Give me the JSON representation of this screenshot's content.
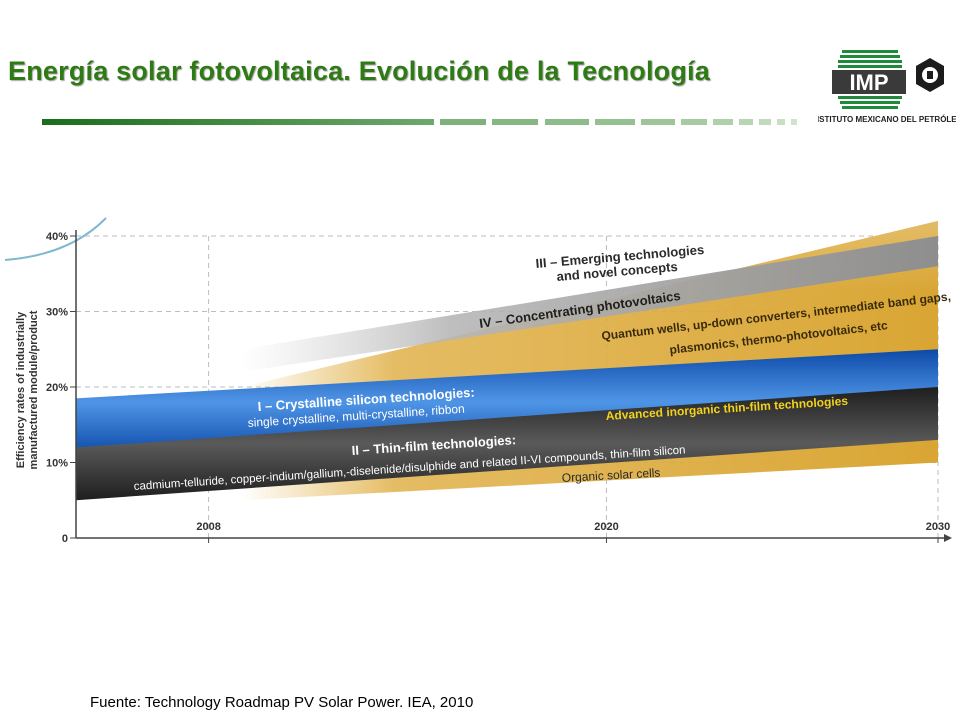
{
  "slide": {
    "title": "Energía solar fotovoltaica. Evolución de la Tecnología",
    "source": "Fuente: Technology Roadmap PV Solar Power. IEA, 2010"
  },
  "logo": {
    "letters": "IMP",
    "name": "INSTITUTO MEXICANO DEL PETRÓLEO"
  },
  "colors": {
    "title_green": "#2e7a14",
    "crystalline_blue": "#1f63c4",
    "thinfilm_dark": "#2b2b2b",
    "emerging_gold": "#d9a634",
    "concentrating_gray": "#9a9a9a"
  },
  "chart_data": {
    "type": "area",
    "ylabel": "Efficiency rates of industrially manufactured module/product",
    "x_ticks": [
      "2008",
      "2020",
      "2030"
    ],
    "y_ticks": [
      "0",
      "10%",
      "20%",
      "30%",
      "40%"
    ],
    "xlim": [
      2004,
      2030
    ],
    "ylim": [
      0,
      40
    ],
    "grid": true,
    "series": [
      {
        "name": "I – Crystalline silicon technologies:",
        "detail": "single crystalline, multi-crystalline, ribbon",
        "x": [
          2004,
          2030
        ],
        "low": [
          11,
          19
        ],
        "high": [
          18.5,
          25
        ]
      },
      {
        "name": "II – Thin-film technologies:",
        "detail": "cadmium-telluride, copper-indium/gallium,-diselenide/disulphide and related II-VI compounds, thin-film silicon",
        "x": [
          2004,
          2030
        ],
        "low": [
          5,
          13
        ],
        "high": [
          12,
          20
        ]
      },
      {
        "name": "III – Emerging technologies and novel concepts",
        "detail": "Quantum wells, up-down converters, intermediate band gaps, plasmonics, thermo-photovoltaics, etc",
        "x": [
          2009,
          2030
        ],
        "low": [
          5,
          10
        ],
        "high": [
          20,
          42
        ]
      },
      {
        "name": "IV – Concentrating photovoltaics",
        "x": [
          2009,
          2030
        ],
        "low": [
          22,
          36
        ],
        "high": [
          25,
          40
        ]
      }
    ],
    "annotations": [
      "Advanced inorganic thin-film technologies",
      "Organic solar cells"
    ]
  }
}
